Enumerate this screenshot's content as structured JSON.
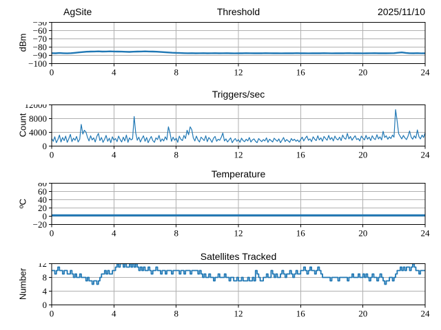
{
  "colors": {
    "line": "#1f77b4",
    "grid": "#b0b0b0",
    "axis": "#000000",
    "text": "#000000",
    "background": "#ffffff"
  },
  "chart_data": [
    {
      "type": "line",
      "title": "Threshold",
      "title_left": "AgSite",
      "title_right": "2025/11/10",
      "ylabel": "dBm",
      "xlim": [
        0,
        24
      ],
      "ylim": [
        -100,
        -50
      ],
      "xticks": [
        0,
        4,
        8,
        12,
        16,
        20,
        24
      ],
      "yticks": [
        -100,
        -90,
        -80,
        -70,
        -60,
        -50
      ],
      "grid": true,
      "legend": "none",
      "line_width": 2.4,
      "x_start": 0,
      "x_step": 0.25,
      "y": [
        -87.3,
        -87.5,
        -87.2,
        -87.4,
        -87.6,
        -87.3,
        -86.9,
        -86.4,
        -86.0,
        -85.6,
        -85.4,
        -85.3,
        -85.2,
        -85.4,
        -85.3,
        -85.2,
        -85.3,
        -85.4,
        -85.5,
        -85.7,
        -85.8,
        -85.6,
        -85.4,
        -85.3,
        -85.2,
        -85.3,
        -85.4,
        -85.6,
        -85.9,
        -86.2,
        -86.5,
        -86.8,
        -87.0,
        -87.2,
        -87.3,
        -87.4,
        -87.3,
        -87.5,
        -87.4,
        -87.3,
        -87.5,
        -87.4,
        -87.3,
        -87.5,
        -87.4,
        -87.3,
        -87.5,
        -87.6,
        -87.4,
        -87.5,
        -87.3,
        -87.4,
        -87.5,
        -87.4,
        -87.5,
        -87.3,
        -87.4,
        -87.5,
        -87.4,
        -87.6,
        -87.5,
        -87.4,
        -87.5,
        -87.3,
        -87.5,
        -87.4,
        -87.6,
        -87.5,
        -87.4,
        -87.5,
        -87.3,
        -87.4,
        -87.6,
        -87.5,
        -87.4,
        -87.5,
        -87.3,
        -87.4,
        -87.5,
        -87.4,
        -87.6,
        -87.5,
        -87.4,
        -87.3,
        -87.5,
        -87.4,
        -87.5,
        -87.4,
        -87.3,
        -86.8,
        -86.4,
        -87.0,
        -87.4,
        -87.5,
        -87.3,
        -87.6,
        -87.5
      ]
    },
    {
      "type": "line",
      "title": "Triggers/sec",
      "ylabel": "Count",
      "xlim": [
        0,
        24
      ],
      "ylim": [
        0,
        12000
      ],
      "xticks": [
        0,
        4,
        8,
        12,
        16,
        20,
        24
      ],
      "yticks": [
        0,
        4000,
        8000,
        12000
      ],
      "grid": true,
      "legend": "none",
      "line_width": 1.2,
      "x_start": 0,
      "x_step": 0.1,
      "y": [
        2200,
        1400,
        2700,
        1000,
        1900,
        3200,
        1200,
        2500,
        1600,
        2900,
        1100,
        2100,
        3400,
        1300,
        2300,
        1700,
        2800,
        1200,
        2000,
        6300,
        3500,
        4600,
        4100,
        2600,
        1500,
        3000,
        1800,
        2400,
        1200,
        2800,
        3700,
        1600,
        2500,
        1100,
        2000,
        3100,
        1400,
        2300,
        1000,
        2700,
        1700,
        2200,
        1300,
        2900,
        1900,
        1200,
        2600,
        1500,
        3200,
        1100,
        2400,
        1800,
        2100,
        8600,
        3900,
        1700,
        2600,
        1200,
        2200,
        3000,
        1400,
        2500,
        1000,
        2000,
        2800,
        1600,
        1100,
        2400,
        1900,
        3100,
        1300,
        2100,
        1500,
        2700,
        1800,
        5600,
        3900,
        1400,
        2600,
        1700,
        2300,
        1100,
        2900,
        2000,
        1600,
        3100,
        2200,
        4600,
        3300,
        5600,
        4800,
        2400,
        1500,
        2900,
        1800,
        1200,
        2600,
        2100,
        1600,
        3000,
        1300,
        2500,
        1900,
        1100,
        2300,
        2800,
        1400,
        2000,
        1700,
        2600,
        3800,
        1500,
        2100,
        1200,
        1800,
        2400,
        1000,
        1700,
        2200,
        1400,
        1900,
        1100,
        2300,
        1600,
        1300,
        2000,
        1500,
        2500,
        1200,
        1800,
        2100,
        1400,
        1000,
        2200,
        1700,
        1300,
        1900,
        1500,
        2400,
        1100,
        2000,
        1600,
        1200,
        2300,
        1800,
        1400,
        2100,
        1000,
        1700,
        2500,
        1300,
        1900,
        1500,
        1100,
        2200,
        1600,
        2000,
        1400,
        1800,
        1200,
        1900,
        2600,
        1500,
        2300,
        2900,
        1700,
        2100,
        1300,
        2700,
        2000,
        1600,
        3000,
        1800,
        2400,
        1400,
        2800,
        2200,
        1700,
        3100,
        1900,
        2500,
        1500,
        2900,
        2100,
        1800,
        2600,
        1600,
        3200,
        2300,
        2000,
        3700,
        2100,
        2800,
        1700,
        2400,
        3000,
        1900,
        2200,
        1500,
        2900,
        2300,
        1800,
        3100,
        2000,
        2600,
        1600,
        3000,
        2200,
        1900,
        3300,
        2100,
        2700,
        1800,
        4300,
        2500,
        3000,
        2000,
        2700,
        2200,
        3200,
        2600,
        10600,
        7200,
        3600,
        2800,
        2100,
        3100,
        2400,
        1900,
        2900,
        4400,
        2600,
        2000,
        3000,
        2300,
        4700,
        2700,
        2100,
        3200,
        2500,
        3900
      ]
    },
    {
      "type": "line",
      "title": "Temperature",
      "ylabel": "ºC",
      "xlim": [
        0,
        24
      ],
      "ylim": [
        -20,
        80
      ],
      "xticks": [
        0,
        4,
        8,
        12,
        16,
        20,
        24
      ],
      "yticks": [
        -20,
        0,
        20,
        40,
        60,
        80
      ],
      "grid": true,
      "legend": "none",
      "line_width": 3,
      "x": [
        0,
        24
      ],
      "y": [
        2,
        2
      ]
    },
    {
      "type": "line",
      "step": true,
      "title": "Satellites Tracked",
      "ylabel": "Number",
      "xlim": [
        0,
        24
      ],
      "ylim": [
        0,
        12
      ],
      "xticks": [
        0,
        4,
        8,
        12,
        16,
        20,
        24
      ],
      "yticks": [
        0,
        4,
        8,
        12
      ],
      "grid": true,
      "legend": "none",
      "line_width": 1.8,
      "x_start": 0,
      "x_step": 0.1,
      "y": [
        10,
        10,
        9,
        10,
        11,
        10,
        10,
        9,
        10,
        10,
        9,
        9,
        10,
        9,
        8,
        9,
        8,
        8,
        9,
        8,
        8,
        8,
        7,
        8,
        7,
        7,
        6,
        7,
        7,
        6,
        7,
        8,
        9,
        9,
        10,
        9,
        10,
        9,
        9,
        10,
        10,
        11,
        12,
        11,
        12,
        12,
        11,
        12,
        11,
        11,
        12,
        11,
        12,
        11,
        12,
        11,
        10,
        11,
        10,
        11,
        10,
        10,
        11,
        10,
        9,
        10,
        10,
        11,
        10,
        10,
        9,
        10,
        10,
        9,
        10,
        10,
        10,
        9,
        10,
        10,
        10,
        10,
        9,
        10,
        10,
        9,
        10,
        10,
        10,
        9,
        10,
        10,
        10,
        10,
        9,
        10,
        9,
        8,
        9,
        8,
        8,
        9,
        8,
        8,
        7,
        8,
        8,
        9,
        8,
        8,
        8,
        9,
        8,
        8,
        7,
        8,
        8,
        7,
        7,
        8,
        7,
        7,
        8,
        7,
        7,
        7,
        8,
        7,
        7,
        8,
        7,
        10,
        9,
        8,
        7,
        7,
        8,
        8,
        9,
        8,
        8,
        10,
        9,
        8,
        9,
        8,
        8,
        9,
        10,
        9,
        8,
        9,
        9,
        10,
        9,
        8,
        9,
        10,
        9,
        9,
        10,
        10,
        11,
        10,
        9,
        10,
        11,
        10,
        10,
        9,
        10,
        11,
        10,
        9,
        8,
        8,
        8,
        8,
        8,
        7,
        8,
        8,
        8,
        8,
        7,
        8,
        8,
        8,
        8,
        8,
        7,
        8,
        8,
        9,
        8,
        8,
        8,
        9,
        8,
        8,
        9,
        8,
        9,
        8,
        7,
        8,
        9,
        8,
        8,
        7,
        8,
        9,
        8,
        7,
        6,
        7,
        7,
        8,
        8,
        7,
        8,
        9,
        10,
        10,
        11,
        10,
        11,
        10,
        11,
        11,
        10,
        11,
        12,
        11,
        10,
        10,
        9,
        10,
        10,
        10,
        10
      ]
    }
  ]
}
